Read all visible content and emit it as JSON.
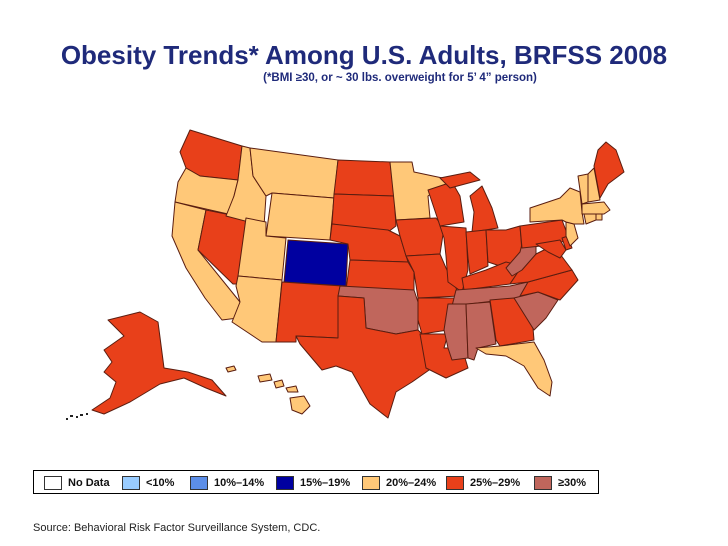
{
  "title": "Obesity Trends* Among U.S. Adults, BRFSS 2008",
  "subtitle": "(*BMI ≥30, or ~ 30 lbs. overweight for 5’ 4” person)",
  "colors": {
    "no_data": "#ffffff",
    "lt10": "#99ccff",
    "r10_14": "#5c8ee8",
    "r15_19": "#0000a0",
    "r20_24": "#ffc878",
    "r25_29": "#e8401a",
    "ge30": "#c0665c"
  },
  "legend": [
    {
      "key": "no_data",
      "label": "No Data"
    },
    {
      "key": "lt10",
      "label": "<10%"
    },
    {
      "key": "r10_14",
      "label": "10%–14%"
    },
    {
      "key": "r15_19",
      "label": "15%–19%"
    },
    {
      "key": "r20_24",
      "label": "20%–24%"
    },
    {
      "key": "r25_29",
      "label": "25%–29%"
    },
    {
      "key": "ge30",
      "label": "≥30%"
    }
  ],
  "states": {
    "WA": "r25_29",
    "OR": "r20_24",
    "CA": "r20_24",
    "NV": "r25_29",
    "ID": "r20_24",
    "MT": "r20_24",
    "WY": "r20_24",
    "UT": "r20_24",
    "AZ": "r20_24",
    "CO": "r15_19",
    "NM": "r25_29",
    "ND": "r25_29",
    "SD": "r25_29",
    "NE": "r25_29",
    "KS": "r25_29",
    "OK": "ge30",
    "TX": "r25_29",
    "MN": "r20_24",
    "IA": "r25_29",
    "MO": "r25_29",
    "AR": "r25_29",
    "LA": "r25_29",
    "WI": "r25_29",
    "IL": "r25_29",
    "MI": "r25_29",
    "IN": "r25_29",
    "OH": "r25_29",
    "KY": "r25_29",
    "TN": "ge30",
    "MS": "ge30",
    "AL": "ge30",
    "GA": "r25_29",
    "FL": "r20_24",
    "SC": "ge30",
    "NC": "r25_29",
    "VA": "r25_29",
    "WV": "ge30",
    "MD": "r25_29",
    "DE": "r25_29",
    "PA": "r25_29",
    "NY": "r20_24",
    "NJ": "r20_24",
    "CT": "r20_24",
    "RI": "r20_24",
    "MA": "r20_24",
    "VT": "r20_24",
    "NH": "r20_24",
    "ME": "r25_29",
    "AK": "r25_29",
    "HI": "r20_24"
  },
  "source": "Source: Behavioral Risk Factor Surveillance System, CDC."
}
